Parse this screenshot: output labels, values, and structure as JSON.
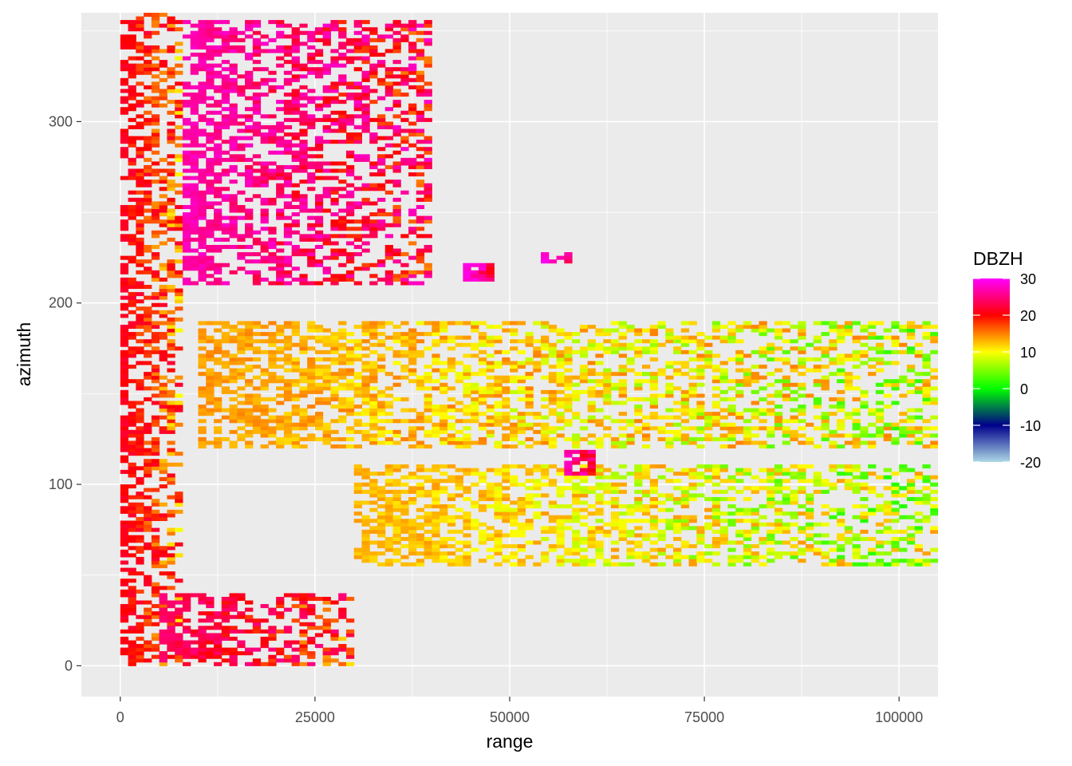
{
  "chart_data": {
    "type": "heatmap",
    "title": "",
    "xlabel": "range",
    "ylabel": "azimuth",
    "xlim": [
      -5000,
      105000
    ],
    "ylim": [
      -17,
      360
    ],
    "x_ticks": [
      0,
      25000,
      50000,
      75000,
      100000
    ],
    "x_tick_labels": [
      "0",
      "25000",
      "50000",
      "75000",
      "100000"
    ],
    "y_ticks": [
      0,
      100,
      200,
      300
    ],
    "y_tick_labels": [
      "0",
      "100",
      "200",
      "300"
    ],
    "grid": true,
    "panel_background": "#ebebeb",
    "legend": {
      "title": "DBZH",
      "placement": "right",
      "range": [
        -20,
        30
      ],
      "ticks": [
        30,
        20,
        10,
        0,
        -10,
        -20
      ],
      "tick_labels": [
        "30",
        "20",
        "10",
        "0",
        "-10",
        "-20"
      ],
      "colors": [
        "#add8e6",
        "#00008b",
        "#00ff00",
        "#ffff00",
        "#ff0000",
        "#ff00ff"
      ]
    },
    "x_range": [
      0,
      105000
    ],
    "azimuth_range": [
      0,
      360
    ],
    "echo_regions": [
      {
        "name": "near-range clutter",
        "range": [
          0,
          8000
        ],
        "azimuth": [
          0,
          360
        ],
        "dbzh": 22
      },
      {
        "name": "large echo north-west",
        "range": [
          8000,
          40000
        ],
        "azimuth": [
          210,
          355
        ],
        "dbzh": 28
      },
      {
        "name": "upper band",
        "range": [
          10000,
          105000
        ],
        "azimuth": [
          120,
          190
        ],
        "dbzh": 15
      },
      {
        "name": "lower band",
        "range": [
          30000,
          105000
        ],
        "azimuth": [
          55,
          110
        ],
        "dbzh": 14
      },
      {
        "name": "low azimuth echo",
        "range": [
          5000,
          30000
        ],
        "azimuth": [
          0,
          40
        ],
        "dbzh": 25
      },
      {
        "name": "isolated echo A",
        "range": [
          54000,
          58000
        ],
        "azimuth": [
          222,
          228
        ],
        "dbzh": 30
      },
      {
        "name": "isolated echo B",
        "range": [
          44000,
          48000
        ],
        "azimuth": [
          212,
          222
        ],
        "dbzh": 30
      },
      {
        "name": "isolated echo C",
        "range": [
          57000,
          61000
        ],
        "azimuth": [
          105,
          118
        ],
        "dbzh": 28
      }
    ]
  }
}
